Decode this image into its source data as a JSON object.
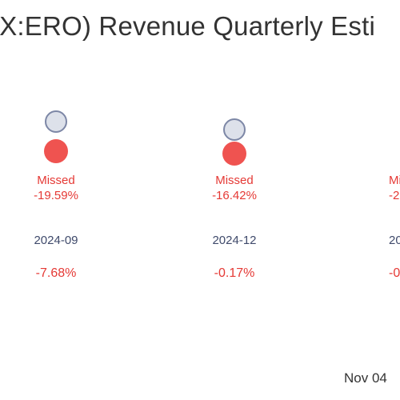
{
  "title": "(X:ERO) Revenue Quarterly Esti",
  "date_label": "Nov 04",
  "colors": {
    "estimate_fill": "#dde1ea",
    "estimate_stroke": "#7d87a6",
    "actual_fill": "#ef5350",
    "missed_text": "#e53935",
    "period_text": "#3f4a6b"
  },
  "chart_data": {
    "type": "scatter",
    "title": "(X:ERO) Revenue Quarterly Esti",
    "categories": [
      "2024-09",
      "2024-12",
      "20"
    ],
    "columns": [
      {
        "period": "2024-09",
        "result": "Missed",
        "surprise": "-19.59%",
        "change": "-7.68%"
      },
      {
        "period": "2024-12",
        "result": "Missed",
        "surprise": "-16.42%",
        "change": "-0.17%"
      },
      {
        "period": "20",
        "result": "Mi",
        "surprise": "-2",
        "change": "-0"
      }
    ]
  }
}
